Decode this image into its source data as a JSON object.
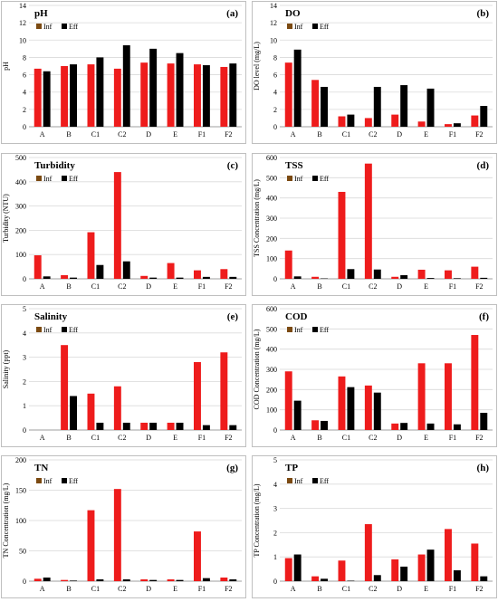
{
  "colors": {
    "inf": "#ee1c1c",
    "eff": "#000000",
    "legend_inf": "#7b4a12",
    "gridline": "#d9d9d9",
    "frame": "#bfbfbf"
  },
  "chart_data": [
    {
      "type": "bar",
      "title": "pH",
      "letter": "(a)",
      "ylabel": "pH",
      "ylim": [
        0,
        14
      ],
      "yticks": [
        0,
        2,
        4,
        6,
        8,
        10,
        12,
        14
      ],
      "legend": "top-left",
      "grid": true,
      "categories": [
        "A",
        "B",
        "C1",
        "C2",
        "D",
        "E",
        "F1",
        "F2"
      ],
      "series": [
        {
          "name": "Inf",
          "values": [
            6.7,
            7.0,
            7.2,
            6.7,
            7.4,
            7.3,
            7.2,
            6.9
          ]
        },
        {
          "name": "Eff",
          "values": [
            6.4,
            7.2,
            8.0,
            9.4,
            9.0,
            8.5,
            7.1,
            7.3
          ]
        }
      ]
    },
    {
      "type": "bar",
      "title": "DO",
      "letter": "(b)",
      "ylabel": "DO level (mg/L)",
      "ylim": [
        0,
        14
      ],
      "yticks": [
        0,
        2,
        4,
        6,
        8,
        10,
        12,
        14
      ],
      "legend": "top-left",
      "grid": true,
      "categories": [
        "A",
        "B",
        "C1",
        "C2",
        "D",
        "E",
        "F1",
        "F2"
      ],
      "series": [
        {
          "name": "Inf",
          "values": [
            7.4,
            5.4,
            1.2,
            1.0,
            1.4,
            0.6,
            0.3,
            1.3
          ]
        },
        {
          "name": "Eff",
          "values": [
            8.9,
            4.6,
            1.4,
            4.6,
            4.8,
            4.4,
            0.4,
            2.4
          ]
        }
      ]
    },
    {
      "type": "bar",
      "title": "Turbidity",
      "letter": "(c)",
      "ylabel": "Turbidity (NTU)",
      "ylim": [
        0,
        500
      ],
      "yticks": [
        0,
        100,
        200,
        300,
        400,
        500
      ],
      "legend": "top-left",
      "grid": true,
      "categories": [
        "A",
        "B",
        "C1",
        "C2",
        "D",
        "E",
        "F1",
        "F2"
      ],
      "series": [
        {
          "name": "Inf",
          "values": [
            97,
            15,
            192,
            440,
            12,
            65,
            35,
            40
          ]
        },
        {
          "name": "Eff",
          "values": [
            10,
            5,
            57,
            72,
            5,
            5,
            8,
            8
          ]
        }
      ]
    },
    {
      "type": "bar",
      "title": "TSS",
      "letter": "(d)",
      "ylabel": "TSS Concentration (mg/L)",
      "ylim": [
        0,
        600
      ],
      "yticks": [
        0,
        100,
        200,
        300,
        400,
        500,
        600
      ],
      "legend": "top-left",
      "grid": true,
      "categories": [
        "A",
        "B",
        "C1",
        "C2",
        "D",
        "E",
        "F1",
        "F2"
      ],
      "series": [
        {
          "name": "Inf",
          "values": [
            140,
            10,
            430,
            570,
            10,
            45,
            42,
            60
          ]
        },
        {
          "name": "Eff",
          "values": [
            12,
            2,
            48,
            46,
            18,
            4,
            3,
            5
          ]
        }
      ]
    },
    {
      "type": "bar",
      "title": "Salinity",
      "letter": "(e)",
      "ylabel": "Salinity (ppt)",
      "ylim": [
        0,
        5
      ],
      "yticks": [
        0,
        1,
        2,
        3,
        4,
        5
      ],
      "legend": "top-left",
      "grid": true,
      "categories": [
        "A",
        "B",
        "C1",
        "C2",
        "D",
        "E",
        "F1",
        "F2"
      ],
      "series": [
        {
          "name": "Inf",
          "values": [
            0,
            3.5,
            1.5,
            1.8,
            0.3,
            0.3,
            2.8,
            3.2
          ]
        },
        {
          "name": "Eff",
          "values": [
            0,
            1.4,
            0.3,
            0.3,
            0.3,
            0.3,
            0.2,
            0.2
          ]
        }
      ]
    },
    {
      "type": "bar",
      "title": "COD",
      "letter": "(f)",
      "ylabel": "COD Concentration (mg/L)",
      "ylim": [
        0,
        600
      ],
      "yticks": [
        0,
        100,
        200,
        300,
        400,
        500,
        600
      ],
      "legend": "top-left",
      "grid": true,
      "categories": [
        "A",
        "B",
        "C1",
        "C2",
        "D",
        "E",
        "F1",
        "F2"
      ],
      "series": [
        {
          "name": "Inf",
          "values": [
            290,
            48,
            265,
            220,
            32,
            330,
            330,
            470
          ]
        },
        {
          "name": "Eff",
          "values": [
            145,
            45,
            212,
            185,
            35,
            32,
            28,
            85
          ]
        }
      ]
    },
    {
      "type": "bar",
      "title": "TN",
      "letter": "(g)",
      "ylabel": "TN Concentration (mg/L)",
      "ylim": [
        0,
        200
      ],
      "yticks": [
        0,
        50,
        100,
        150,
        200
      ],
      "legend": "top-left",
      "grid": true,
      "categories": [
        "A",
        "B",
        "C1",
        "C2",
        "D",
        "E",
        "F1",
        "F2"
      ],
      "series": [
        {
          "name": "Inf",
          "values": [
            4,
            2,
            117,
            152,
            3,
            3,
            82,
            6
          ]
        },
        {
          "name": "Eff",
          "values": [
            6,
            1,
            3,
            3,
            2,
            2,
            5,
            3
          ]
        }
      ]
    },
    {
      "type": "bar",
      "title": "TP",
      "letter": "(h)",
      "ylabel": "TP Concentration (mg/L)",
      "ylim": [
        0,
        5
      ],
      "yticks": [
        0,
        1,
        2,
        3,
        4,
        5
      ],
      "legend": "top-left",
      "grid": true,
      "categories": [
        "A",
        "B",
        "C1",
        "C2",
        "D",
        "E",
        "F1",
        "F2"
      ],
      "series": [
        {
          "name": "Inf",
          "values": [
            0.95,
            0.2,
            0.85,
            2.35,
            0.9,
            1.1,
            2.15,
            1.55
          ]
        },
        {
          "name": "Eff",
          "values": [
            1.1,
            0.1,
            0.02,
            0.25,
            0.6,
            1.3,
            0.45,
            0.2
          ]
        }
      ]
    }
  ]
}
